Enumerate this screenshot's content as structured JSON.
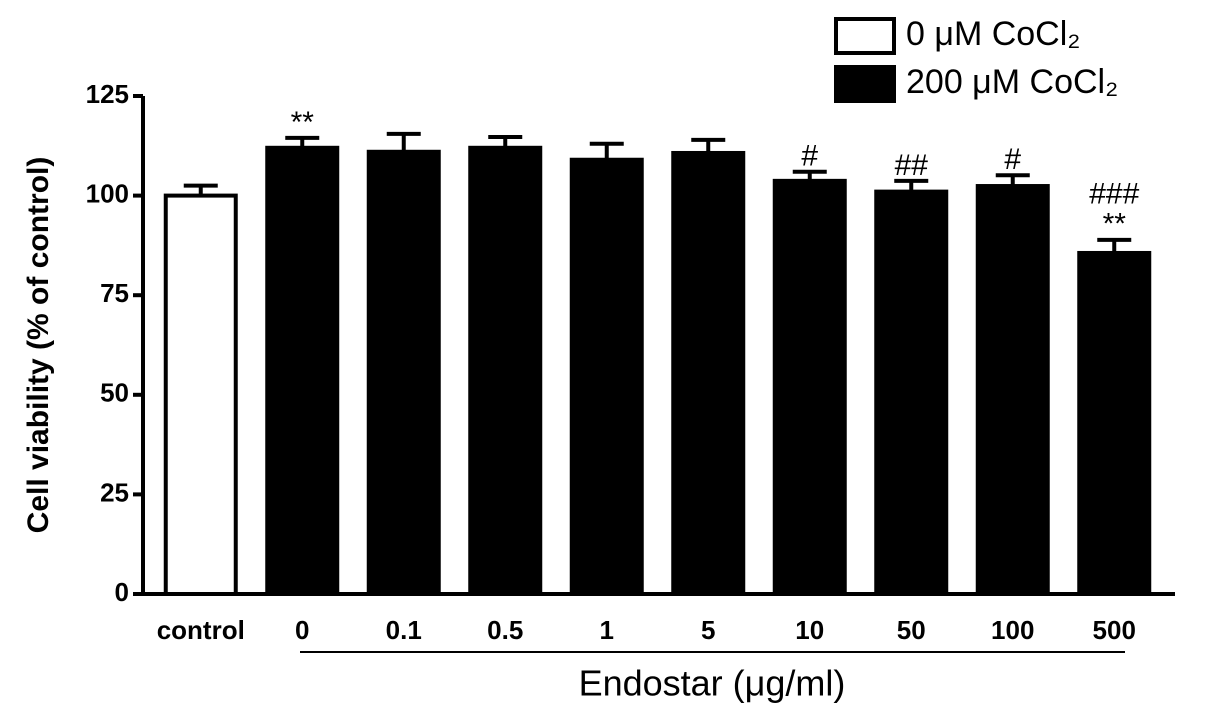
{
  "chart_data": {
    "type": "bar",
    "y_label": "Cell viability (% of control)",
    "x_label": "Endostar (μg/ml)",
    "categories": [
      "control",
      "0",
      "0.1",
      "0.5",
      "1",
      "5",
      "10",
      "50",
      "100",
      "500"
    ],
    "series": [
      {
        "name": "0 μM CoCl₂",
        "color": "#ffffff",
        "values": [
          100,
          null,
          null,
          null,
          null,
          null,
          null,
          null,
          null,
          null
        ],
        "errors": [
          2.5,
          null,
          null,
          null,
          null,
          null,
          null,
          null,
          null,
          null
        ]
      },
      {
        "name": "200 μM CoCl₂",
        "color": "#000000",
        "values": [
          null,
          112,
          111,
          112,
          109,
          110.7,
          103.7,
          101,
          102.4,
          85.6
        ],
        "errors": [
          null,
          2.5,
          4.5,
          2.7,
          4,
          3.3,
          2.3,
          2.7,
          2.7,
          3.3
        ]
      }
    ],
    "annotations": [
      null,
      [
        "**"
      ],
      null,
      null,
      null,
      null,
      [
        "#"
      ],
      [
        "##"
      ],
      [
        "#"
      ],
      [
        "###",
        "**"
      ]
    ],
    "ylim": [
      0,
      125
    ],
    "yticks": [
      0,
      25,
      50,
      75,
      100,
      125
    ],
    "grid": false,
    "legend": "top-right"
  }
}
